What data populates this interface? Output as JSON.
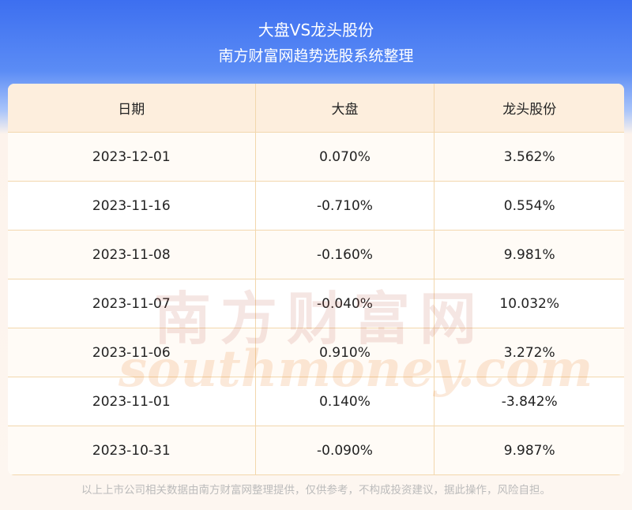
{
  "header": {
    "title": "大盘VS龙头股份",
    "subtitle": "南方财富网趋势选股系统整理"
  },
  "table": {
    "columns": [
      "日期",
      "大盘",
      "龙头股份"
    ],
    "rows": [
      [
        "2023-12-01",
        "0.070%",
        "3.562%"
      ],
      [
        "2023-11-16",
        "-0.710%",
        "0.554%"
      ],
      [
        "2023-11-08",
        "-0.160%",
        "9.981%"
      ],
      [
        "2023-11-07",
        "-0.040%",
        "10.032%"
      ],
      [
        "2023-11-06",
        "0.910%",
        "3.272%"
      ],
      [
        "2023-11-01",
        "0.140%",
        "-3.842%"
      ],
      [
        "2023-10-31",
        "-0.090%",
        "9.987%"
      ]
    ]
  },
  "watermark": {
    "brand": "南方财富网",
    "site": "southmoney.com"
  },
  "footer": "以上上市公司相关数据由南方财富网整理提供，仅供参考，不构成投资建议，据此操作，风险自担。"
}
